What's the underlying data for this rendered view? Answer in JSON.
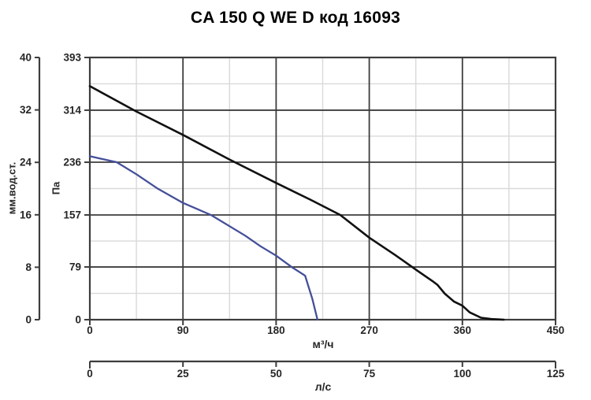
{
  "title": "CA 150 Q WE D код 16093",
  "colors": {
    "background": "#ffffff",
    "axis": "#3d3d3d",
    "grid_major": "#3d3d3d",
    "grid_minor": "#d9d9d9",
    "text": "#262626",
    "title_text": "#000000",
    "curve_black": "#111111",
    "curve_blue": "#454f99"
  },
  "chart_data": {
    "type": "line",
    "title": "CA 150 Q WE D код 16093",
    "grid": {
      "major": true,
      "minor": true
    },
    "legend": "none",
    "x_axis_primary": {
      "label": "м³/ч",
      "ticks": [
        0,
        90,
        180,
        270,
        360,
        450
      ],
      "range": [
        0,
        450
      ]
    },
    "x_axis_secondary": {
      "label": "л/с",
      "ticks": [
        0,
        25,
        50,
        75,
        100,
        125
      ],
      "range": [
        0,
        125
      ]
    },
    "y_axis_primary": {
      "label": "Па",
      "ticks": [
        0,
        79,
        157,
        236,
        314,
        393
      ],
      "range": [
        0,
        393
      ]
    },
    "y_axis_secondary": {
      "label": "мм.вод.ст.",
      "ticks": [
        0,
        8,
        16,
        24,
        32,
        40
      ],
      "range": [
        0,
        40
      ]
    },
    "series": [
      {
        "name": "curve-black",
        "color": "#111111",
        "points": [
          [
            0,
            350
          ],
          [
            45,
            312
          ],
          [
            90,
            277
          ],
          [
            135,
            240
          ],
          [
            180,
            205
          ],
          [
            213,
            180
          ],
          [
            242,
            157
          ],
          [
            270,
            123
          ],
          [
            295,
            97
          ],
          [
            316,
            74
          ],
          [
            331,
            58
          ],
          [
            336,
            52
          ],
          [
            343,
            39
          ],
          [
            352,
            27
          ],
          [
            360,
            21
          ],
          [
            367,
            11
          ],
          [
            378,
            3
          ],
          [
            388,
            1
          ],
          [
            400,
            0
          ]
        ]
      },
      {
        "name": "curve-blue",
        "color": "#454f99",
        "points": [
          [
            0,
            245
          ],
          [
            26,
            236
          ],
          [
            45,
            218
          ],
          [
            65,
            197
          ],
          [
            90,
            175
          ],
          [
            117,
            157
          ],
          [
            150,
            126
          ],
          [
            165,
            110
          ],
          [
            180,
            96
          ],
          [
            195,
            79
          ],
          [
            208,
            66
          ],
          [
            215,
            31
          ],
          [
            220,
            0
          ]
        ]
      }
    ]
  }
}
